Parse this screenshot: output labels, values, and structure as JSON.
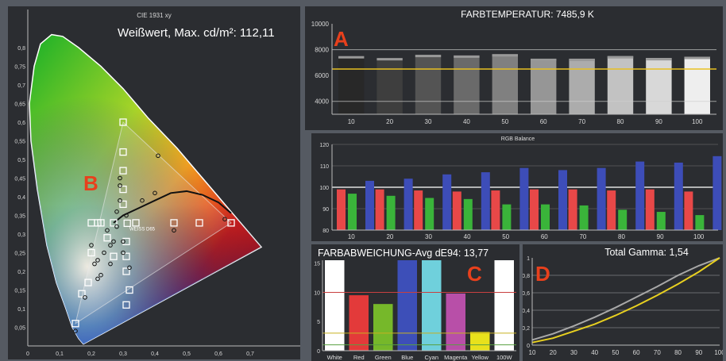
{
  "chart_data": [
    {
      "type": "scatter",
      "title": "CIE 1931 xy",
      "annotation": "Weißwert, Max. cd/m²: 112,11",
      "whitepoint_label": "WEISS D65",
      "xlim": [
        0,
        0.75
      ],
      "ylim": [
        0,
        0.85
      ],
      "xticks": [
        "0",
        "0,1",
        "0,2",
        "0,3",
        "0,4",
        "0,5",
        "0,6",
        "0,7"
      ],
      "yticks": [
        "0,05",
        "0,1",
        "0,15",
        "0,2",
        "0,25",
        "0,3",
        "0,35",
        "0,4",
        "0,45",
        "0,5",
        "0,55",
        "0,6",
        "0,65",
        "0,7",
        "0,75",
        "0,8"
      ],
      "targets": [
        [
          0.64,
          0.33
        ],
        [
          0.3,
          0.6
        ],
        [
          0.15,
          0.06
        ],
        [
          0.313,
          0.329
        ],
        [
          0.27,
          0.33
        ],
        [
          0.23,
          0.33
        ],
        [
          0.22,
          0.33
        ],
        [
          0.2,
          0.33
        ],
        [
          0.34,
          0.33
        ],
        [
          0.46,
          0.33
        ],
        [
          0.54,
          0.33
        ],
        [
          0.3,
          0.52
        ],
        [
          0.3,
          0.47
        ],
        [
          0.3,
          0.42
        ],
        [
          0.3,
          0.38
        ],
        [
          0.31,
          0.28
        ],
        [
          0.31,
          0.24
        ],
        [
          0.31,
          0.2
        ],
        [
          0.32,
          0.15
        ],
        [
          0.31,
          0.11
        ],
        [
          0.27,
          0.24
        ],
        [
          0.25,
          0.29
        ],
        [
          0.19,
          0.17
        ],
        [
          0.17,
          0.14
        ],
        [
          0.2,
          0.25
        ]
      ],
      "measured": [
        [
          0.62,
          0.34
        ],
        [
          0.41,
          0.51
        ],
        [
          0.29,
          0.43
        ],
        [
          0.31,
          0.35
        ],
        [
          0.25,
          0.31
        ],
        [
          0.29,
          0.39
        ],
        [
          0.28,
          0.36
        ],
        [
          0.4,
          0.41
        ],
        [
          0.36,
          0.39
        ],
        [
          0.46,
          0.31
        ],
        [
          0.28,
          0.32
        ],
        [
          0.26,
          0.27
        ],
        [
          0.24,
          0.25
        ],
        [
          0.22,
          0.23
        ],
        [
          0.21,
          0.22
        ],
        [
          0.23,
          0.19
        ],
        [
          0.22,
          0.18
        ],
        [
          0.18,
          0.13
        ],
        [
          0.15,
          0.04
        ],
        [
          0.27,
          0.28
        ],
        [
          0.3,
          0.25
        ],
        [
          0.32,
          0.21
        ],
        [
          0.3,
          0.28
        ],
        [
          0.26,
          0.22
        ],
        [
          0.2,
          0.27
        ],
        [
          0.29,
          0.45
        ]
      ],
      "legend_position": "none"
    },
    {
      "type": "bar",
      "title": "FARBTEMPERATUR: 7485,9 K",
      "categories": [
        "10",
        "20",
        "30",
        "40",
        "50",
        "60",
        "70",
        "80",
        "90",
        "100"
      ],
      "values": [
        7500,
        7350,
        7600,
        7550,
        7650,
        7300,
        7300,
        7500,
        7350,
        7450
      ],
      "reference_line": 6500,
      "ylim": [
        3000,
        10000
      ],
      "yticks": [
        "4000",
        "6000",
        "8000",
        "10000"
      ]
    },
    {
      "type": "bar",
      "title": "RGB Balance",
      "categories": [
        "10",
        "20",
        "30",
        "40",
        "50",
        "60",
        "70",
        "80",
        "90",
        "100"
      ],
      "ylim": [
        80,
        120
      ],
      "yticks": [
        "80",
        "90",
        "100",
        "110",
        "120"
      ],
      "series": [
        {
          "color": "#e84848",
          "values": [
            99,
            99,
            98.5,
            98,
            98.5,
            99,
            99,
            98.5,
            99,
            98
          ]
        },
        {
          "color": "#3ab43a",
          "values": [
            97,
            96,
            95,
            94.5,
            92,
            92,
            91.5,
            89.5,
            88.5,
            87
          ]
        },
        {
          "color": "#3d4db8",
          "values": [
            103,
            104,
            106,
            107,
            109,
            108,
            109,
            112,
            111.5,
            114.5
          ]
        }
      ]
    },
    {
      "type": "bar",
      "title": "FARBABWEICHUNG-Avg dE94: 13,77",
      "categories": [
        "White",
        "Red",
        "Green",
        "Blue",
        "Cyan",
        "Magenta",
        "Yellow",
        "100W"
      ],
      "values": [
        16,
        9.5,
        8,
        16,
        16,
        9.8,
        3.2,
        16
      ],
      "colors": [
        "#ffffff",
        "#e33a3a",
        "#76b82a",
        "#3d4fb8",
        "#6fd0dc",
        "#b84fa8",
        "#e8e11c",
        "#ffffff"
      ],
      "ylim": [
        0,
        15.5
      ],
      "yticks": [
        "0",
        "5",
        "10",
        "15"
      ],
      "reference_lines": [
        {
          "value": 10,
          "color": "#c84040"
        },
        {
          "value": 3,
          "color": "#c8b020"
        },
        {
          "value": 1,
          "color": "#58a040"
        }
      ]
    },
    {
      "type": "line",
      "title": "Total Gamma: 1,54",
      "xlim": [
        10,
        100
      ],
      "ylim": [
        0,
        1
      ],
      "xticks": [
        "10",
        "20",
        "30",
        "40",
        "50",
        "60",
        "70",
        "80",
        "90",
        "100"
      ],
      "yticks": [
        "0",
        "0,2",
        "0,4",
        "0,6",
        "0,8",
        "1"
      ],
      "series": [
        {
          "color": "#e8d020",
          "x": [
            10,
            20,
            30,
            40,
            50,
            60,
            70,
            80,
            90,
            100
          ],
          "values": [
            0.03,
            0.08,
            0.16,
            0.24,
            0.34,
            0.45,
            0.57,
            0.7,
            0.84,
            1.0
          ]
        },
        {
          "color": "#a8a8a8",
          "x": [
            10,
            20,
            30,
            40,
            50,
            60,
            70,
            80,
            90,
            100
          ],
          "values": [
            0.06,
            0.13,
            0.22,
            0.32,
            0.43,
            0.55,
            0.67,
            0.8,
            0.91,
            1.0
          ]
        }
      ]
    }
  ],
  "badges": {
    "a": "A",
    "b": "B",
    "c": "C",
    "d": "D"
  }
}
